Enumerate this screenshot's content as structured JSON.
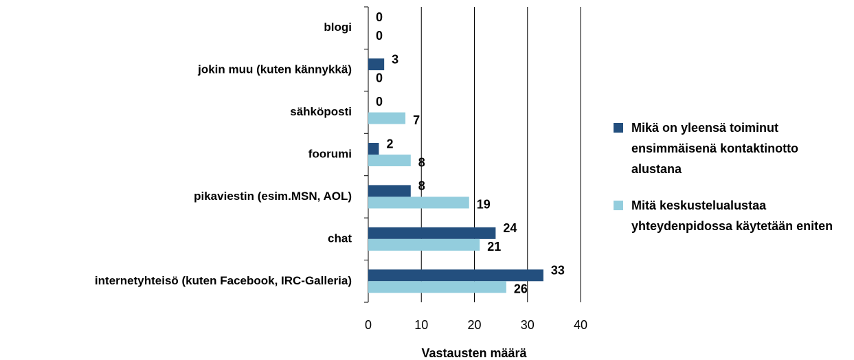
{
  "chart_data": {
    "type": "bar",
    "orientation": "horizontal",
    "x_axis_label": "Vastausten määrä",
    "categories": [
      "blogi",
      "jokin muu (kuten kännykkä)",
      "sähköposti",
      "foorumi",
      "pikaviestin (esim.MSN, AOL)",
      "chat",
      "internetyhteisö (kuten Facebook, IRC-Galleria)"
    ],
    "series": [
      {
        "name": "Mikä on yleensä toiminut ensimmäisenä kontaktinotto alustana",
        "color": "#234f7e",
        "values": [
          0,
          3,
          0,
          2,
          8,
          24,
          33
        ]
      },
      {
        "name": "Mitä keskustelualustaa yhteydenpidossa käytetään eniten",
        "color": "#93cddd",
        "values": [
          0,
          0,
          7,
          8,
          19,
          21,
          26
        ]
      }
    ],
    "xlim": [
      0,
      40
    ],
    "xticks": [
      0,
      10,
      20,
      30,
      40
    ],
    "grid": true,
    "legend": "right"
  }
}
